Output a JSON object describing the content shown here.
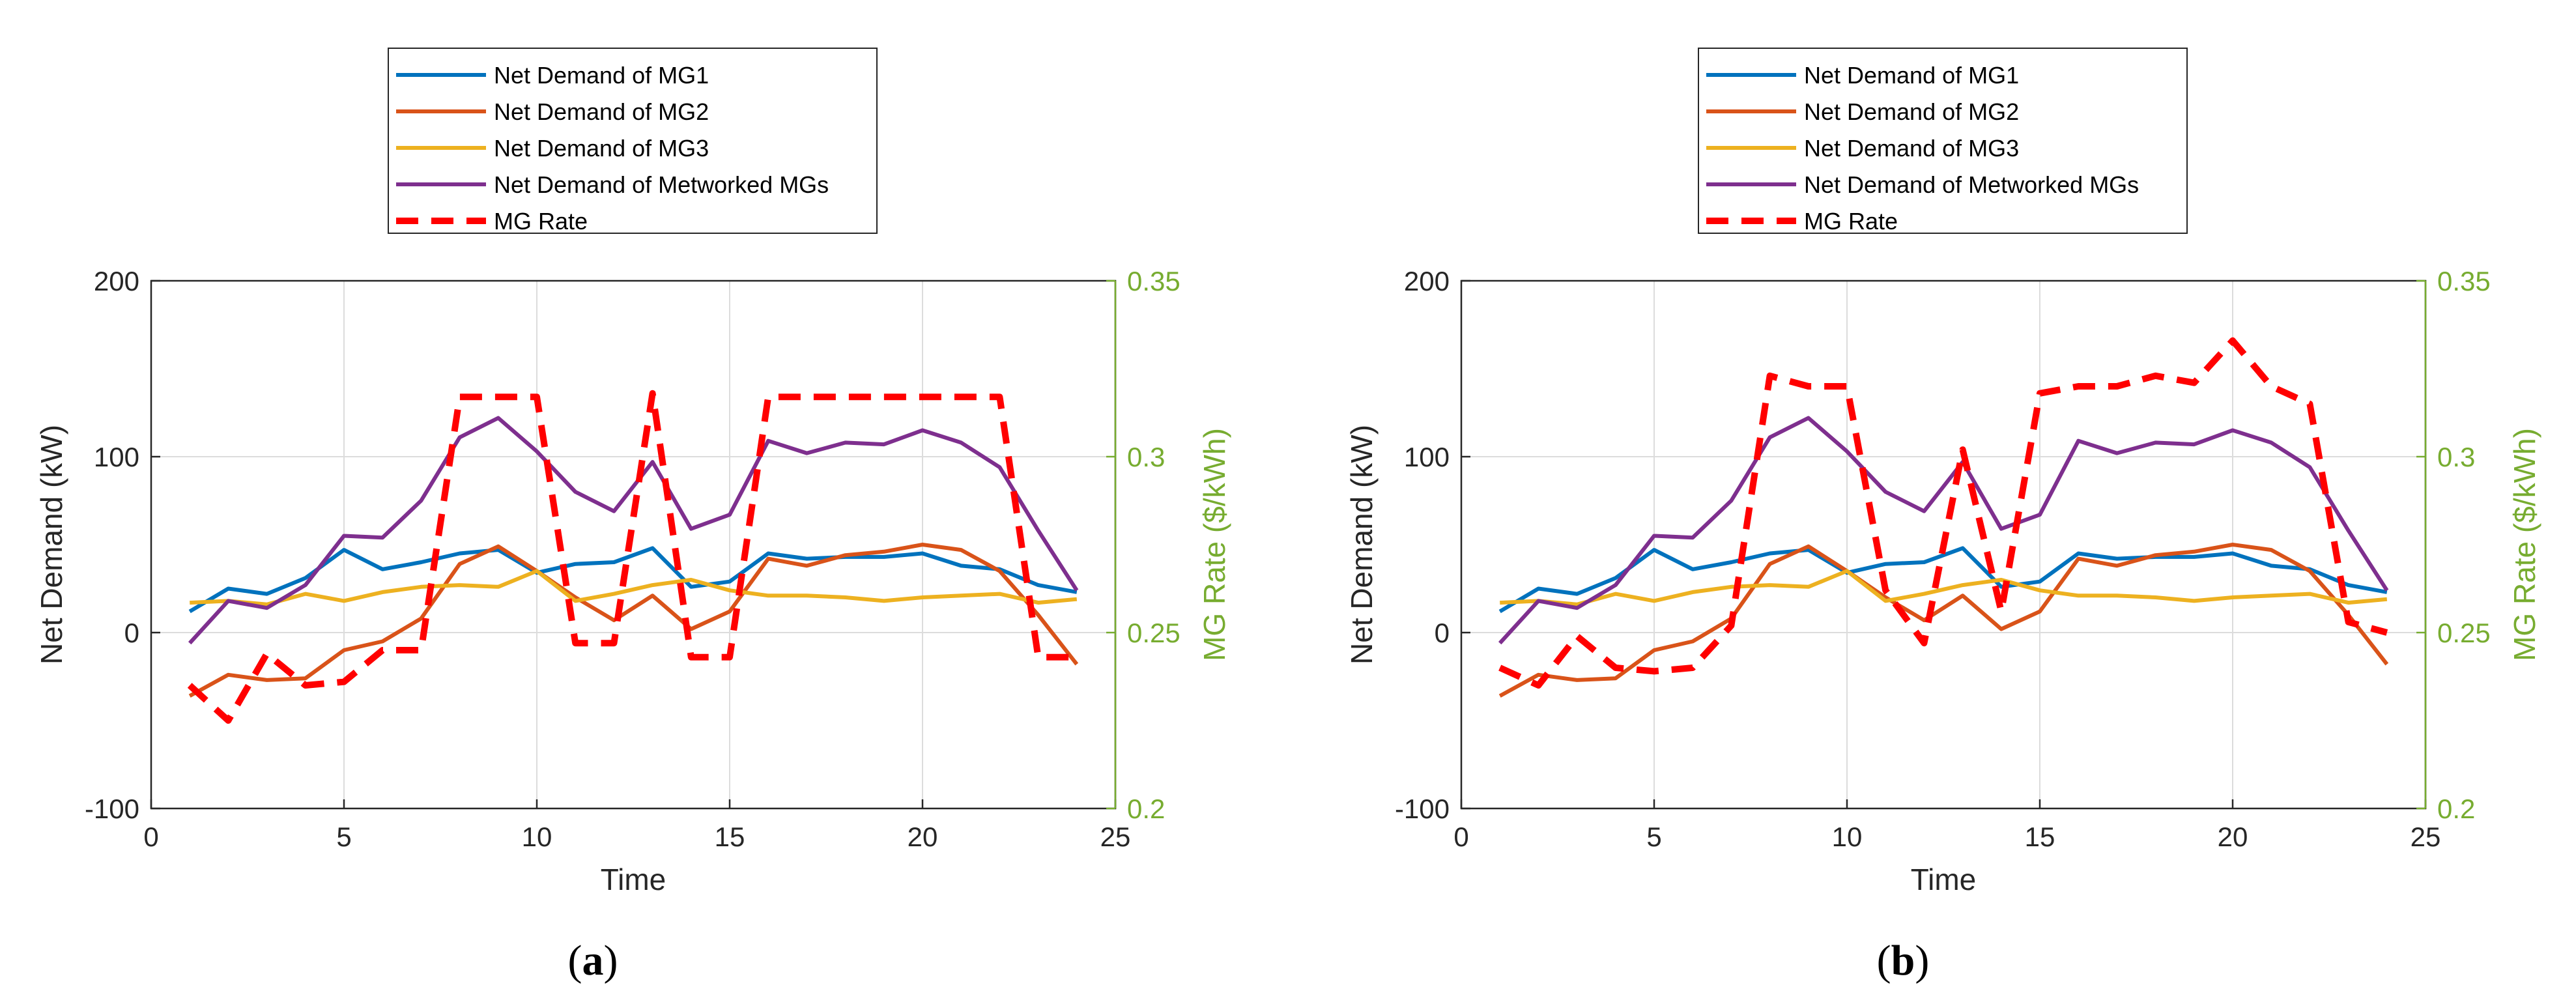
{
  "colors": {
    "mg1": "#0072BD",
    "mg2": "#D95319",
    "mg3": "#EDB120",
    "networked": "#7E2F8E",
    "rate": "#FF0000",
    "right_axis": "#77AC30",
    "grid": "#DCDCDC"
  },
  "chart_data": [
    {
      "type": "line",
      "panel_label": "(a)",
      "caption_letter": "a",
      "xlabel": "Time",
      "ylabel": "Net Demand (kW)",
      "ylabel_right": "MG Rate ($/kWh)",
      "xlim": [
        0,
        25
      ],
      "ylim": [
        -100,
        200
      ],
      "ylim_right": [
        0.2,
        0.35
      ],
      "xticks": [
        0,
        5,
        10,
        15,
        20,
        25
      ],
      "yticks": [
        -100,
        0,
        100,
        200
      ],
      "yticks_right": [
        "0.2",
        "0.25",
        "0.3",
        "0.35"
      ],
      "grid": true,
      "legend_position": "top-center-outside",
      "x": [
        1,
        2,
        3,
        4,
        5,
        6,
        7,
        8,
        9,
        10,
        11,
        12,
        13,
        14,
        15,
        16,
        17,
        18,
        19,
        20,
        21,
        22,
        23,
        24
      ],
      "series": [
        {
          "name": "Net Demand of MG1",
          "axis": "left",
          "values": [
            12,
            25,
            22,
            31,
            47,
            36,
            40,
            45,
            47,
            34,
            39,
            40,
            48,
            26,
            29,
            45,
            42,
            43,
            43,
            45,
            38,
            36,
            27,
            23
          ]
        },
        {
          "name": "Net Demand of MG2",
          "axis": "left",
          "values": [
            -36,
            -24,
            -27,
            -26,
            -10,
            -5,
            8,
            39,
            49,
            35,
            20,
            7,
            21,
            2,
            12,
            42,
            38,
            44,
            46,
            50,
            47,
            35,
            10,
            -18
          ]
        },
        {
          "name": "Net Demand of MG3",
          "axis": "left",
          "values": [
            17,
            18,
            16,
            22,
            18,
            23,
            26,
            27,
            26,
            35,
            18,
            22,
            27,
            30,
            24,
            21,
            21,
            20,
            18,
            20,
            21,
            22,
            17,
            19
          ]
        },
        {
          "name": "Net Demand of Metworked MGs",
          "axis": "left",
          "values": [
            -6,
            18,
            14,
            27,
            55,
            54,
            75,
            111,
            122,
            103,
            80,
            69,
            97,
            59,
            67,
            109,
            102,
            108,
            107,
            115,
            108,
            94,
            58,
            24
          ]
        },
        {
          "name": "MG Rate",
          "axis": "right",
          "dashed": true,
          "values": [
            0.235,
            0.225,
            0.244,
            0.235,
            0.236,
            0.245,
            0.245,
            0.317,
            0.317,
            0.317,
            0.247,
            0.247,
            0.318,
            0.243,
            0.243,
            0.317,
            0.317,
            0.317,
            0.317,
            0.317,
            0.317,
            0.317,
            0.243,
            0.243
          ]
        }
      ]
    },
    {
      "type": "line",
      "panel_label": "(b)",
      "caption_letter": "b",
      "xlabel": "Time",
      "ylabel": "Net Demand (kW)",
      "ylabel_right": "MG Rate ($/kWh)",
      "xlim": [
        0,
        25
      ],
      "ylim": [
        -100,
        200
      ],
      "ylim_right": [
        0.2,
        0.35
      ],
      "xticks": [
        0,
        5,
        10,
        15,
        20,
        25
      ],
      "yticks": [
        -100,
        0,
        100,
        200
      ],
      "yticks_right": [
        "0.2",
        "0.25",
        "0.3",
        "0.35"
      ],
      "grid": true,
      "legend_position": "top-center-outside",
      "x": [
        1,
        2,
        3,
        4,
        5,
        6,
        7,
        8,
        9,
        10,
        11,
        12,
        13,
        14,
        15,
        16,
        17,
        18,
        19,
        20,
        21,
        22,
        23,
        24
      ],
      "series": [
        {
          "name": "Net Demand of MG1",
          "axis": "left",
          "values": [
            12,
            25,
            22,
            31,
            47,
            36,
            40,
            45,
            47,
            34,
            39,
            40,
            48,
            26,
            29,
            45,
            42,
            43,
            43,
            45,
            38,
            36,
            27,
            23
          ]
        },
        {
          "name": "Net Demand of MG2",
          "axis": "left",
          "values": [
            -36,
            -24,
            -27,
            -26,
            -10,
            -5,
            8,
            39,
            49,
            35,
            20,
            7,
            21,
            2,
            12,
            42,
            38,
            44,
            46,
            50,
            47,
            35,
            10,
            -18
          ]
        },
        {
          "name": "Net Demand of MG3",
          "axis": "left",
          "values": [
            17,
            18,
            16,
            22,
            18,
            23,
            26,
            27,
            26,
            35,
            18,
            22,
            27,
            30,
            24,
            21,
            21,
            20,
            18,
            20,
            21,
            22,
            17,
            19
          ]
        },
        {
          "name": "Net Demand of Metworked MGs",
          "axis": "left",
          "values": [
            -6,
            18,
            14,
            27,
            55,
            54,
            75,
            111,
            122,
            103,
            80,
            69,
            97,
            59,
            67,
            109,
            102,
            108,
            107,
            115,
            108,
            94,
            58,
            24
          ]
        },
        {
          "name": "MG Rate",
          "axis": "right",
          "dashed": true,
          "values": [
            0.24,
            0.235,
            0.249,
            0.24,
            0.239,
            0.24,
            0.252,
            0.323,
            0.32,
            0.32,
            0.262,
            0.247,
            0.302,
            0.256,
            0.318,
            0.32,
            0.32,
            0.323,
            0.321,
            0.333,
            0.32,
            0.315,
            0.253,
            0.25
          ]
        }
      ]
    }
  ]
}
